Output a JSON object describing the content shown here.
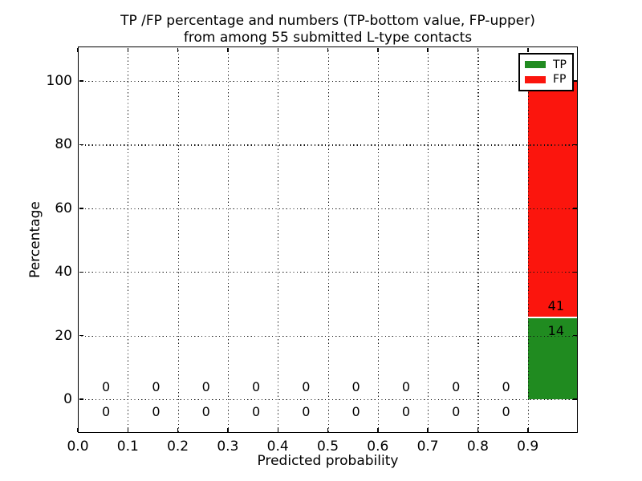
{
  "chart_data": {
    "type": "bar",
    "stacked": true,
    "title_line1": "TP /FP percentage and numbers (TP-bottom value, FP-upper)",
    "title_line2": "from among 55 submitted L-type contacts",
    "xlabel": "Predicted probability",
    "ylabel": "Percentage",
    "total_submitted": 55,
    "xlim": [
      0.0,
      1.0
    ],
    "ylim": [
      -10.8,
      110.8
    ],
    "grid": "dotted",
    "axisbelow": false,
    "legend_position": "upper right",
    "x_tick_values": [
      0.0,
      0.1,
      0.2,
      0.3,
      0.4,
      0.5,
      0.6,
      0.7,
      0.8,
      0.9
    ],
    "x_tick_labels": [
      "0.0",
      "0.1",
      "0.2",
      "0.3",
      "0.4",
      "0.5",
      "0.6",
      "0.7",
      "0.8",
      "0.9"
    ],
    "y_tick_values": [
      0,
      20,
      40,
      60,
      80,
      100
    ],
    "y_tick_labels": [
      "0",
      "20",
      "40",
      "60",
      "80",
      "100"
    ],
    "bin_edges": [
      0.0,
      0.1,
      0.2,
      0.3,
      0.4,
      0.5,
      0.6,
      0.7,
      0.8,
      0.9,
      1.0
    ],
    "series": [
      {
        "name": "TP",
        "position": "bottom",
        "color": "#208b20",
        "counts": [
          0,
          0,
          0,
          0,
          0,
          0,
          0,
          0,
          0,
          14
        ]
      },
      {
        "name": "FP",
        "position": "upper",
        "color": "#fb150d",
        "counts": [
          0,
          0,
          0,
          0,
          0,
          0,
          0,
          0,
          0,
          41
        ]
      }
    ],
    "last_bin_percent": {
      "tp": 25.45,
      "fp": 74.55
    },
    "colors": {
      "tp_green": "#208b20",
      "fp_red": "#fb150d",
      "text": "#000000",
      "background": "#ffffff"
    }
  }
}
